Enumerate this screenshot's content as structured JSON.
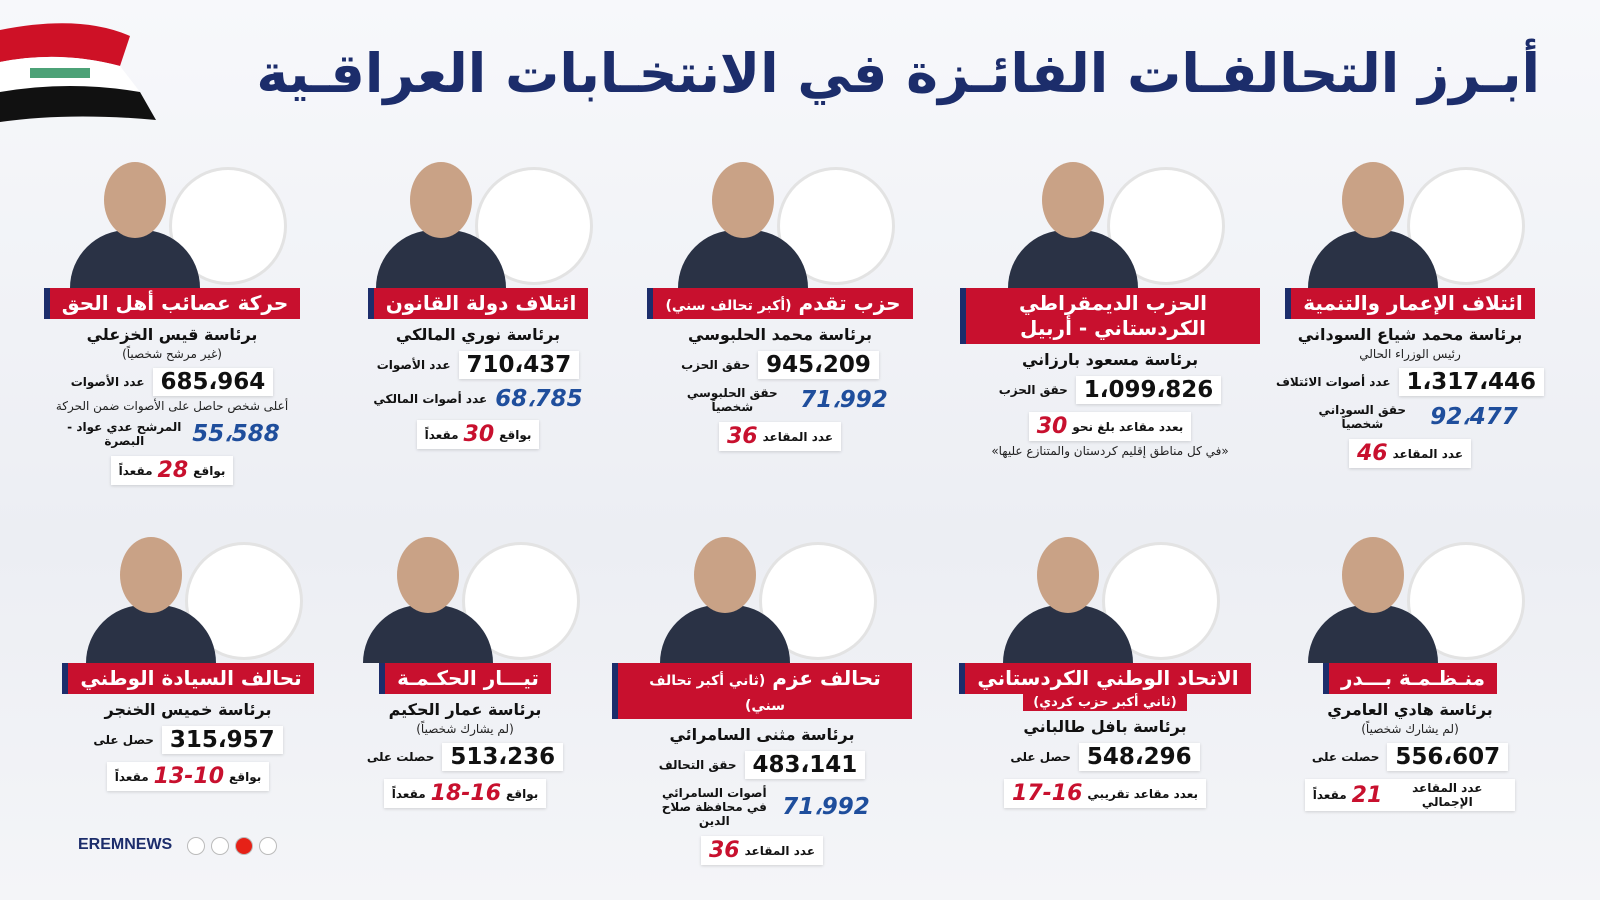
{
  "header": {
    "title": "أبـرز التحالفـات الفائـزة في الانتخـابات العراقـية"
  },
  "cards": [
    {
      "name": "ائتلاف الإعمار والتنمية",
      "leader": "برئاسة محمد شياع السوداني",
      "note": "رئيس الوزراء الحالي",
      "votes": {
        "label": "عدد أصوات الائتلاف",
        "value": "1،317،446"
      },
      "personal": {
        "label": "حقق السوداني شخصياً",
        "value": "92،477"
      },
      "seats": {
        "label": "عدد المقاعد",
        "value": "46"
      }
    },
    {
      "name": "الحزب الديمقراطي الكردستاني - أربيل",
      "leader": "برئاسة مسعود بارزاني",
      "votes": {
        "label": "حقق الحزب",
        "value": "1،099،826"
      },
      "seats": {
        "label": "بعدد مقاعد بلغ نحو",
        "value": "30"
      },
      "footnote": "«في كل مناطق إقليم كردستان والمتنازع عليها»"
    },
    {
      "name": "حزب تقدم",
      "sub": "(أكبر تحالف سني)",
      "leader": "برئاسة محمد الحلبوسي",
      "votes": {
        "label": "حقق الحزب",
        "value": "945،209"
      },
      "personal": {
        "label": "حقق الحلبوسي شخصياً",
        "value": "71،992"
      },
      "seats": {
        "label": "عدد المقاعد",
        "value": "36"
      }
    },
    {
      "name": "ائتلاف دولة القانون",
      "leader": "برئاسة نوري المالكي",
      "votes": {
        "label": "عدد الأصوات",
        "value": "710،437"
      },
      "personal": {
        "label": "عدد أصوات المالكي",
        "value": "68،785"
      },
      "seats": {
        "label": "بواقع",
        "value": "30",
        "unit": "مقعداً"
      }
    },
    {
      "name": "حركة عصائب أهل الحق",
      "leader": "برئاسة قيس الخزعلي",
      "note": "(غير مرشح شخصياً)",
      "votes": {
        "label": "عدد الأصوات",
        "value": "685،964"
      },
      "personal": {
        "note": "أعلى شخص حاصل على الأصوات ضمن الحركة",
        "label": "المرشح عدي عواد - البصرة",
        "value": "55،588"
      },
      "seats": {
        "label": "بواقع",
        "value": "28",
        "unit": "مقعداً"
      }
    },
    {
      "name": "منـظـمـة بـــدر",
      "leader": "برئاسة هادي العامري",
      "note": "(لم يشارك شخصياً)",
      "votes": {
        "label": "حصلت على",
        "value": "556،607"
      },
      "seats": {
        "label": "عدد المقاعد الإجمالي",
        "value": "21",
        "unit": "مقعداً"
      }
    },
    {
      "name": "الاتحاد الوطني الكردستاني",
      "sub": "(ثاني أكبر حزب كردي)",
      "leader": "برئاسة بافل طالباني",
      "votes": {
        "label": "حصل على",
        "value": "548،296"
      },
      "seats": {
        "label": "بعدد مقاعد تقريبي",
        "value": "17-16"
      }
    },
    {
      "name": "تحالف عزم",
      "sub": "(ثاني أكبر تحالف سني)",
      "leader": "برئاسة مثنى السامرائي",
      "votes": {
        "label": "حقق التحالف",
        "value": "483،141"
      },
      "personal": {
        "label": "أصوات السامرائي في محافظة صلاح الدين",
        "value": "71،992"
      },
      "seats": {
        "label": "عدد المقاعد",
        "value": "36"
      }
    },
    {
      "name": "تيـــار الحكـمـة",
      "leader": "برئاسة عمار الحكيم",
      "note": "(لم يشارك شخصياً)",
      "votes": {
        "label": "حصلت على",
        "value": "513،236"
      },
      "seats": {
        "label": "بواقع",
        "value": "18-16",
        "unit": "مقعداً"
      }
    },
    {
      "name": "تحالف السيادة الوطني",
      "leader": "برئاسة خميس الخنجر",
      "votes": {
        "label": "حصل على",
        "value": "315،957"
      },
      "seats": {
        "label": "بواقع",
        "value": "13-10",
        "unit": "مقعداً"
      }
    }
  ],
  "footer": {
    "brand": "EREMNEWS"
  }
}
